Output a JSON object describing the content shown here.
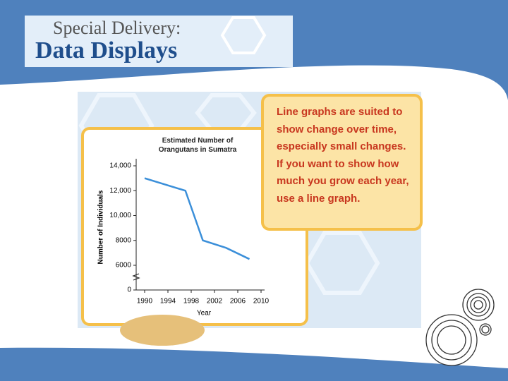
{
  "header": {
    "title_line1": "Special Delivery:",
    "title_line2": "Data Displays"
  },
  "callout": {
    "lines": [
      "Line graphs are suited to",
      "show change over time,",
      "especially small changes.",
      "If you want to show how",
      "much you grow each year,",
      "use a line graph."
    ]
  },
  "chart_data": {
    "type": "line",
    "title": "Estimated Number of Orangutans in Sumatra",
    "x_label": "Year",
    "y_label": "Number of Individuals",
    "x": [
      1990,
      1997,
      2000,
      2004,
      2008
    ],
    "values": [
      13000,
      12000,
      8000,
      7400,
      6500
    ],
    "color": "#3b8fd9",
    "xlim": [
      1990,
      2010
    ],
    "xticks": [
      1990,
      1994,
      1998,
      2002,
      2006,
      2010
    ],
    "ylim": [
      0,
      14000
    ],
    "yticks": [
      0,
      6000,
      8000,
      {
        "value": 10000,
        "label": "10,000"
      },
      {
        "value": 12000,
        "label": "12,000"
      },
      {
        "value": 14000,
        "label": "14,000"
      }
    ],
    "axis_break": true
  }
}
